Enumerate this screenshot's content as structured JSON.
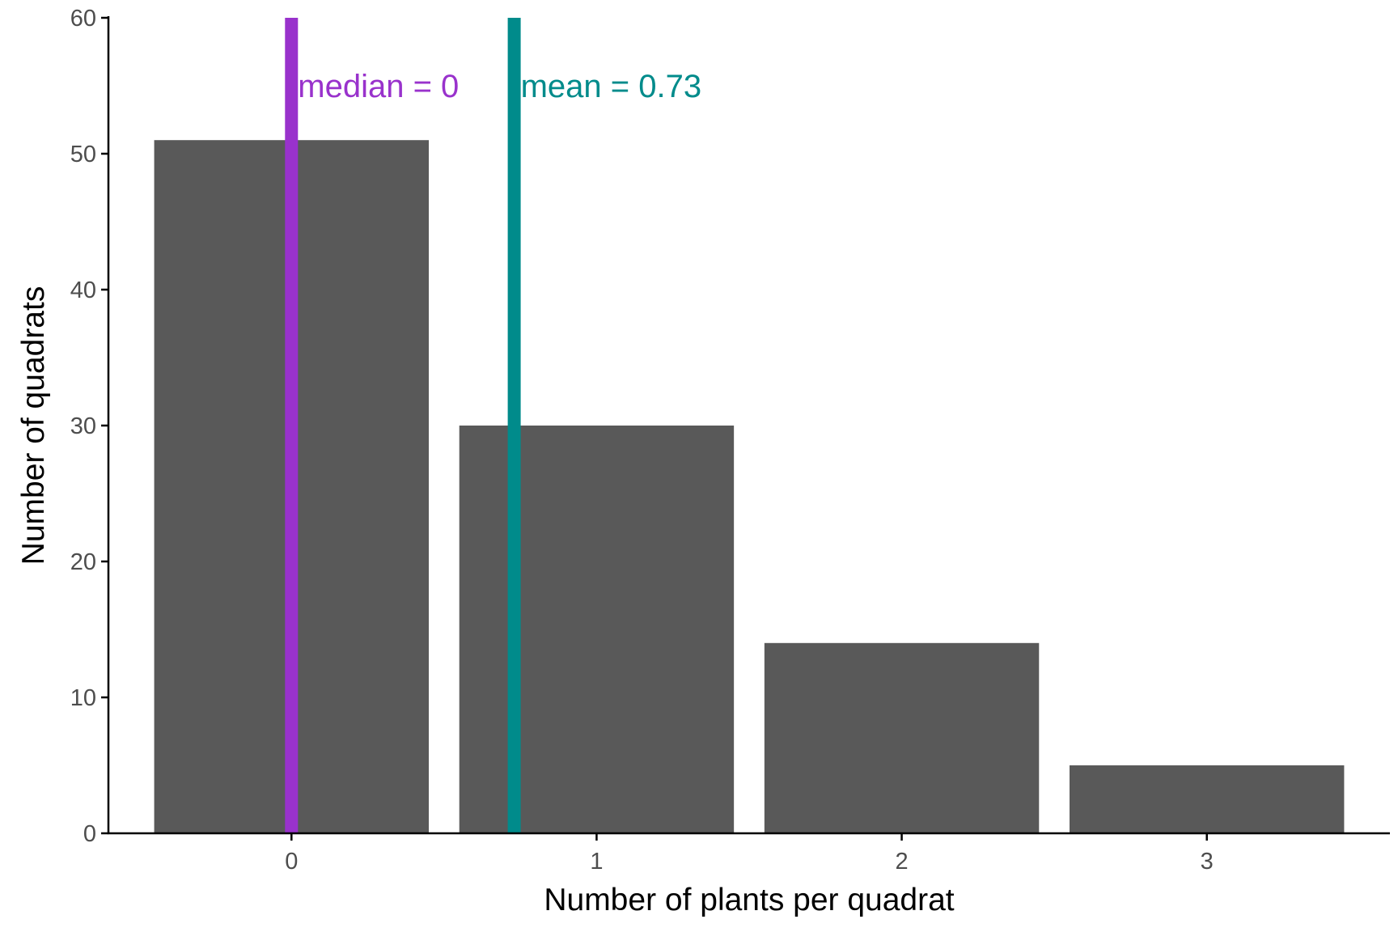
{
  "chart_data": {
    "type": "bar",
    "title": "",
    "xlabel": "Number of plants per quadrat",
    "ylabel": "Number of quadrats",
    "categories": [
      "0",
      "1",
      "2",
      "3"
    ],
    "x": [
      0,
      1,
      2,
      3
    ],
    "values": [
      51,
      30,
      14,
      5
    ],
    "ylim": [
      0,
      60
    ],
    "y_ticks": [
      0,
      10,
      20,
      30,
      40,
      50,
      60
    ],
    "y_tick_labels": [
      "0",
      "10",
      "20",
      "30",
      "40",
      "50",
      "60"
    ],
    "grid": false,
    "bar_color": "#595959",
    "reference_lines": [
      {
        "name": "median",
        "value": 0,
        "label": "median =  0",
        "color": "#9932CC"
      },
      {
        "name": "mean",
        "value": 0.73,
        "label": "mean =  0.73",
        "color": "#008B8B"
      }
    ],
    "annotation_y": 55
  }
}
